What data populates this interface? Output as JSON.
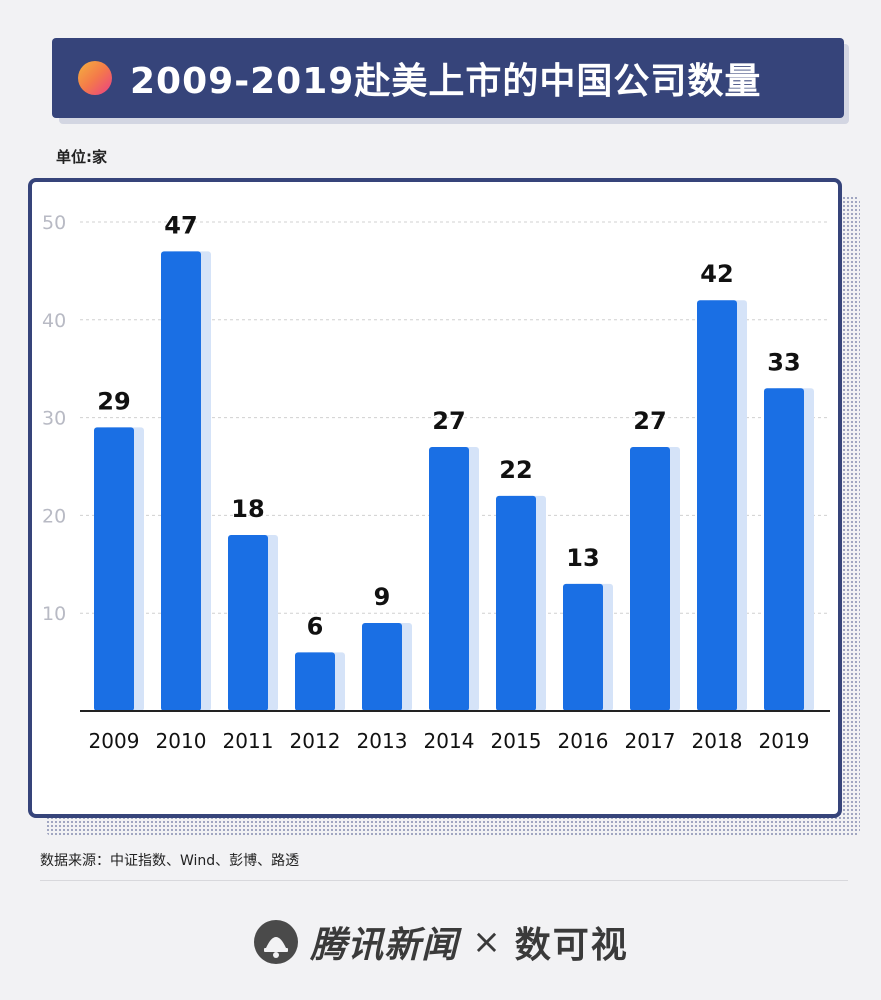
{
  "header": {
    "title": "2009-2019赴美上市的中国公司数量"
  },
  "unit_label": "单位:家",
  "source_text": "数据来源：中证指数、Wind、彭博、路透",
  "footer": {
    "brand_left": "腾讯新闻",
    "times_symbol": "×",
    "brand_right": "数可视"
  },
  "colors": {
    "bar": "#1a6fe4",
    "bar_shadow": "#d5e3f8",
    "title_bg": "#36447a",
    "grid": "#d0d0d0"
  },
  "chart_data": {
    "type": "bar",
    "title": "2009-2019赴美上市的中国公司数量",
    "xlabel": "",
    "ylabel": "单位:家",
    "categories": [
      "2009",
      "2010",
      "2011",
      "2012",
      "2013",
      "2014",
      "2015",
      "2016",
      "2017",
      "2018",
      "2019"
    ],
    "values": [
      29,
      47,
      18,
      6,
      9,
      27,
      22,
      13,
      27,
      42,
      33
    ],
    "ylim": [
      0,
      50
    ],
    "yticks": [
      10,
      20,
      30,
      40,
      50
    ],
    "grid": true,
    "data_labels": true
  }
}
